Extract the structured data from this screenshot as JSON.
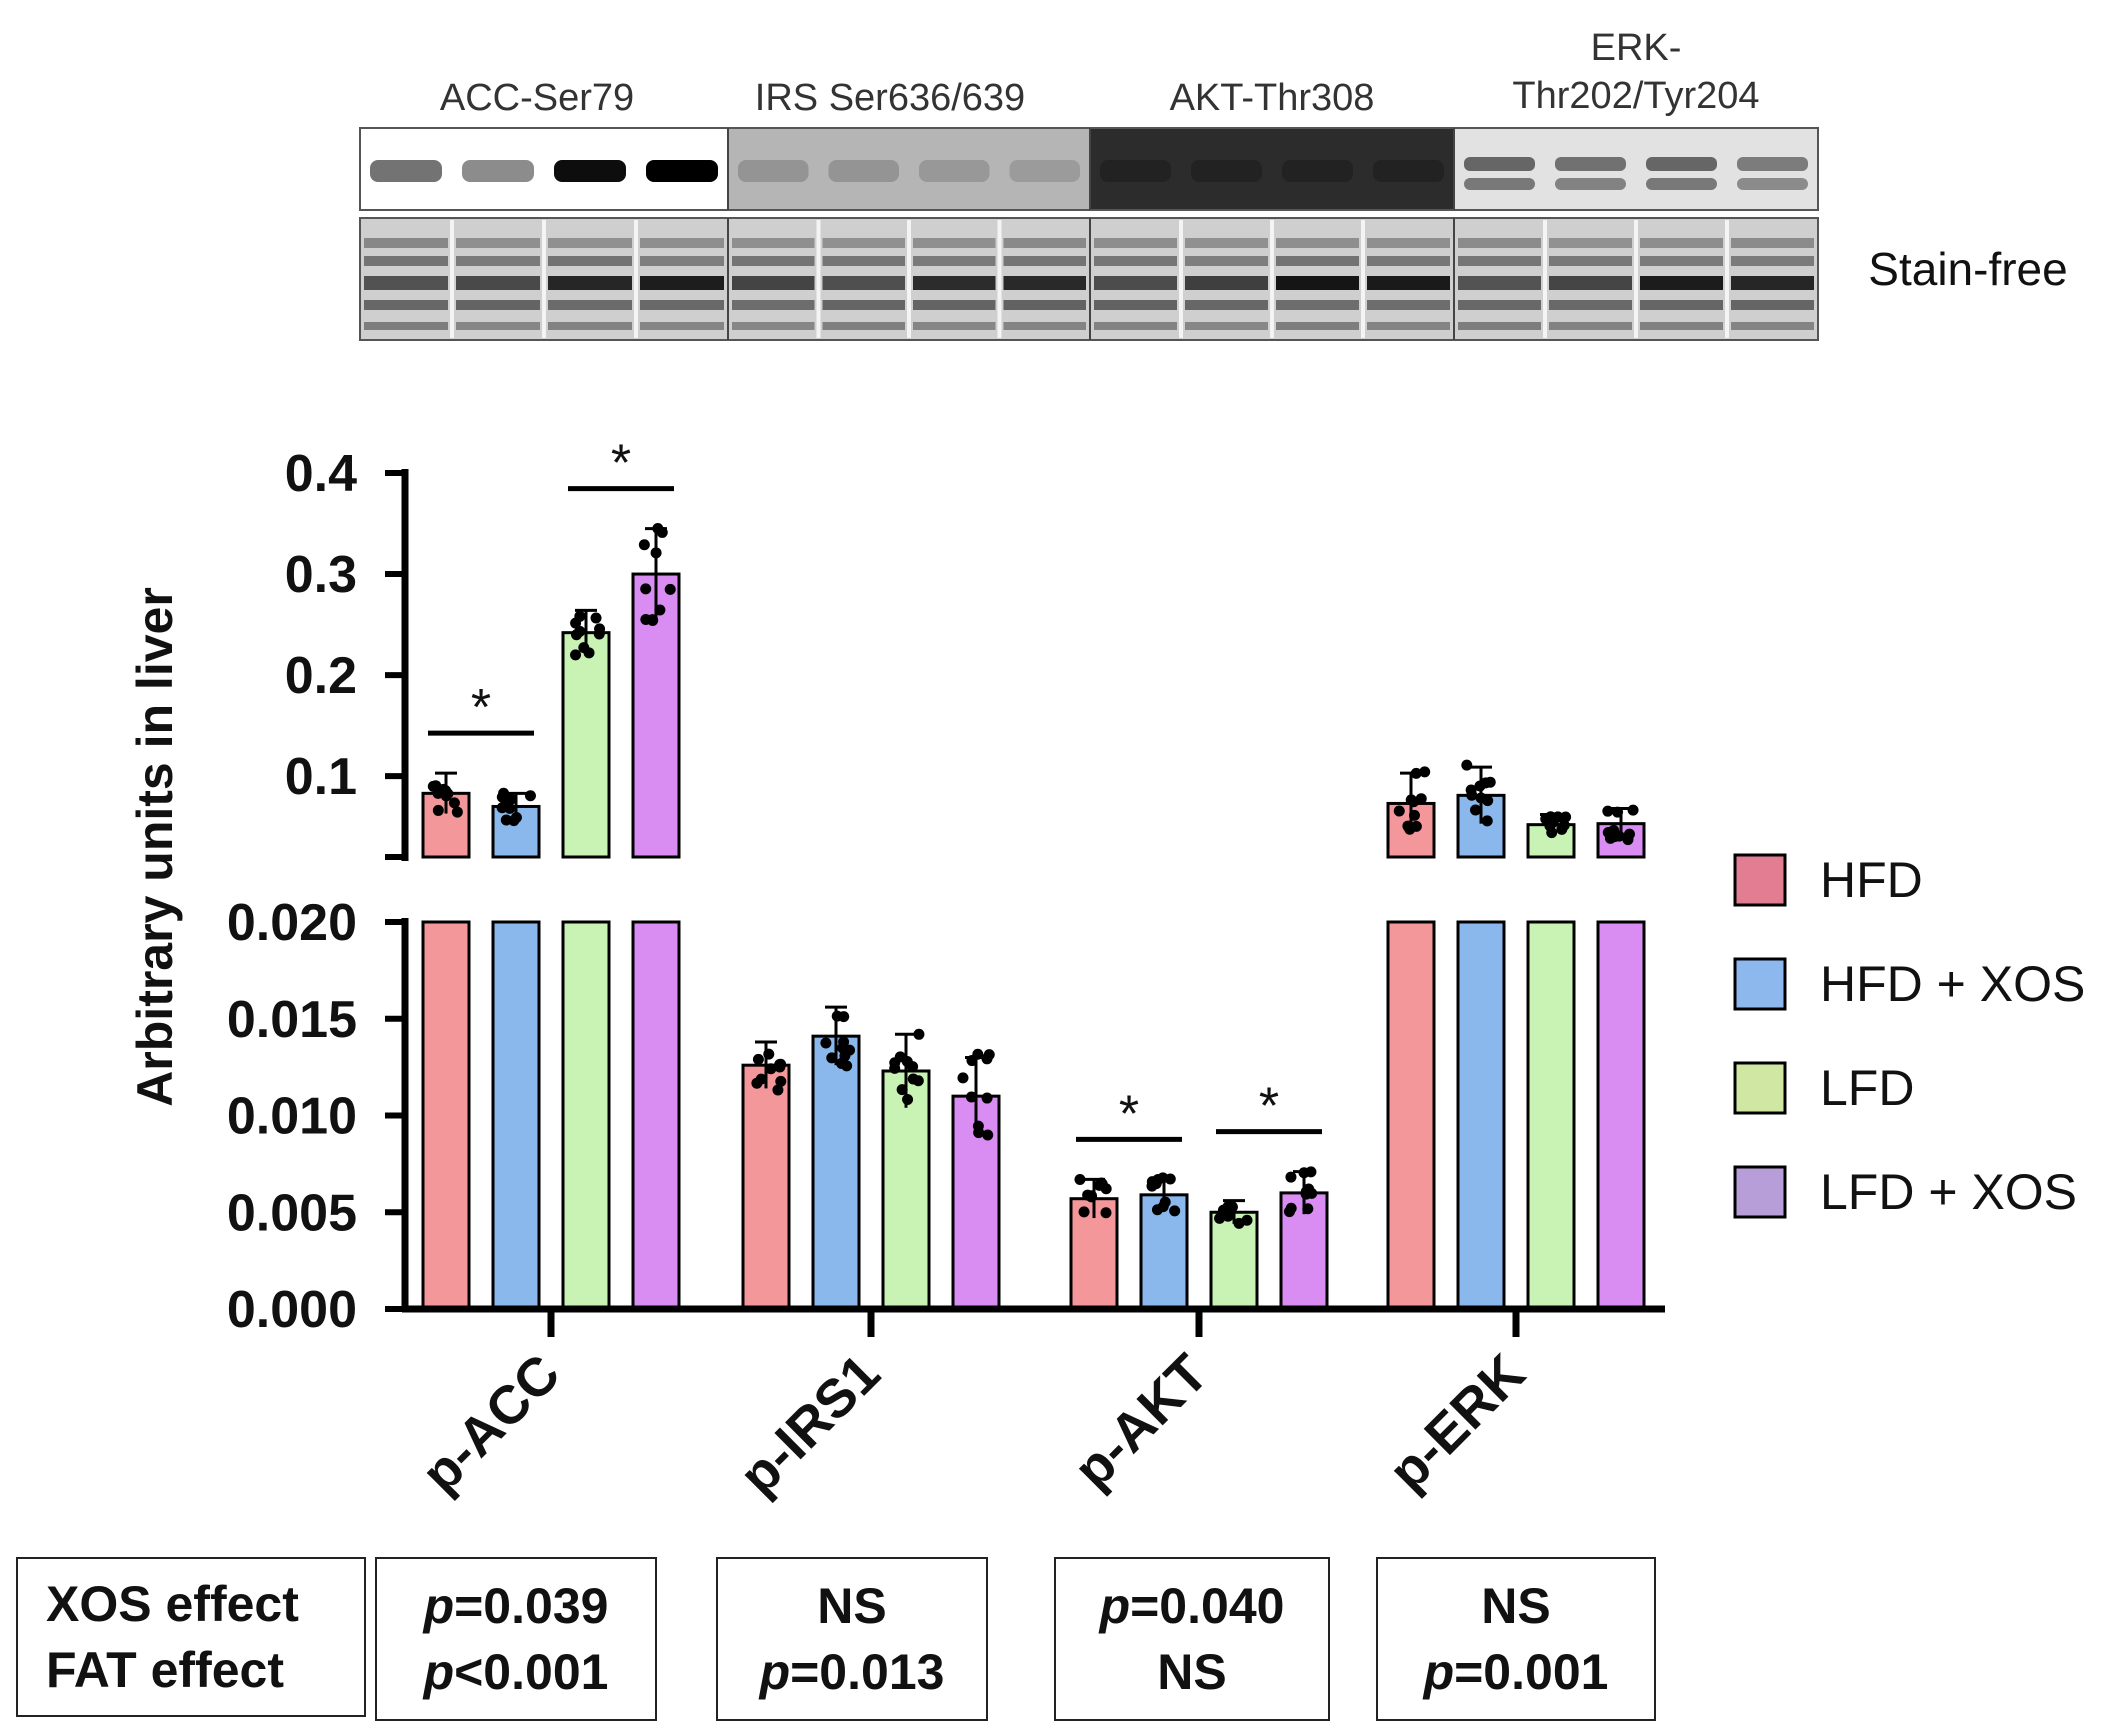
{
  "blot": {
    "targets": [
      {
        "label_lines": [
          "ACC-Ser79"
        ]
      },
      {
        "label_lines": [
          "IRS Ser636/639"
        ]
      },
      {
        "label_lines": [
          "AKT-Thr308"
        ]
      },
      {
        "label_lines": [
          "ERK-",
          "Thr202/Tyr204"
        ]
      }
    ],
    "loading_label": "Stain-free"
  },
  "chart_data": {
    "type": "bar",
    "ylabel": "Arbitrary units in liver",
    "categories": [
      "p-ACC",
      "p-IRS1",
      "p-AKT",
      "p-ERK"
    ],
    "y_axis_break": {
      "lower_range": [
        0,
        0.02
      ],
      "upper_range": [
        0.02,
        0.4
      ],
      "lower_ticks": [
        "0.000",
        "0.005",
        "0.010",
        "0.015",
        "0.020"
      ],
      "upper_ticks": [
        "0.1",
        "0.2",
        "0.3",
        "0.4"
      ]
    },
    "series": [
      {
        "name": "HFD",
        "color": "#f4979b",
        "values": [
          0.083,
          0.0126,
          0.0057,
          0.073
        ],
        "sd": [
          0.02,
          0.0012,
          0.001,
          0.03
        ]
      },
      {
        "name": "HFD + XOS",
        "color": "#8ab8ec",
        "values": [
          0.07,
          0.0141,
          0.0059,
          0.081
        ],
        "sd": [
          0.013,
          0.0015,
          0.0008,
          0.028
        ]
      },
      {
        "name": "LFD",
        "color": "#c9f3b4",
        "values": [
          0.242,
          0.0123,
          0.005,
          0.052
        ],
        "sd": [
          0.022,
          0.0019,
          0.0006,
          0.01
        ]
      },
      {
        "name": "LFD + XOS",
        "color": "#d98cf2",
        "values": [
          0.3,
          0.011,
          0.006,
          0.053
        ],
        "sd": [
          0.045,
          0.002,
          0.0011,
          0.015
        ]
      }
    ],
    "significance": [
      {
        "category": "p-ACC",
        "between": [
          "HFD",
          "HFD + XOS"
        ],
        "label": "*"
      },
      {
        "category": "p-ACC",
        "between": [
          "LFD",
          "LFD + XOS"
        ],
        "label": "*"
      },
      {
        "category": "p-AKT",
        "between": [
          "HFD",
          "HFD + XOS"
        ],
        "label": "*"
      },
      {
        "category": "p-AKT",
        "between": [
          "LFD",
          "LFD + XOS"
        ],
        "label": "*"
      }
    ],
    "legend": {
      "position": "right",
      "entries": [
        "HFD",
        "HFD + XOS",
        "LFD",
        "LFD + XOS"
      ],
      "swatch_colors": [
        "#e27d92",
        "#8db8ee",
        "#cfe7a3",
        "#b89ed9"
      ]
    }
  },
  "stats_table": {
    "row_labels": [
      "XOS effect",
      "FAT effect"
    ],
    "cells": [
      {
        "xos": {
          "p": "p",
          "rest": "=0.039"
        },
        "fat": {
          "p": "p",
          "rest": "<0.001"
        }
      },
      {
        "xos": {
          "p": "",
          "rest": "NS"
        },
        "fat": {
          "p": "p",
          "rest": "=0.013"
        }
      },
      {
        "xos": {
          "p": "p",
          "rest": "=0.040"
        },
        "fat": {
          "p": "",
          "rest": "NS"
        }
      },
      {
        "xos": {
          "p": "",
          "rest": "NS"
        },
        "fat": {
          "p": "p",
          "rest": "=0.001"
        }
      }
    ]
  }
}
